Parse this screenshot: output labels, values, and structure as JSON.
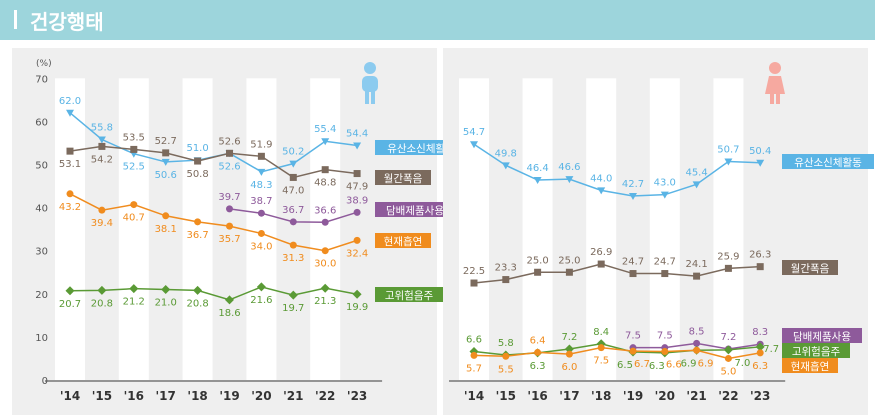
{
  "title": "건강행태",
  "chart_data": [
    {
      "type": "line",
      "panel": "male",
      "ylabel": "(%)",
      "ylim": [
        0,
        70
      ],
      "yticks": [
        0,
        10,
        20,
        30,
        40,
        50,
        60,
        70
      ],
      "categories": [
        "'14",
        "'15",
        "'16",
        "'17",
        "'18",
        "'19",
        "'20",
        "'21",
        "'22",
        "'23"
      ],
      "series": [
        {
          "name": "유산소신체활동",
          "color": "#5ab4e5",
          "marker": "triangle",
          "values": [
            62.0,
            55.8,
            52.5,
            50.6,
            51.0,
            52.6,
            48.3,
            50.2,
            55.4,
            54.4
          ],
          "labelPos": [
            "a",
            "a",
            "b",
            "b",
            "a",
            "b",
            "b",
            "a",
            "a",
            "a"
          ]
        },
        {
          "name": "월간폭음",
          "color": "#7b6a5d",
          "marker": "square",
          "values": [
            53.1,
            54.2,
            53.5,
            52.7,
            50.8,
            52.6,
            51.9,
            47.0,
            48.8,
            47.9
          ],
          "labelPos": [
            "b",
            "b",
            "a",
            "a",
            "b",
            "a",
            "a",
            "b",
            "b",
            "b"
          ]
        },
        {
          "name": "담배제품사용",
          "color": "#8e5a9b",
          "marker": "circle",
          "values": [
            null,
            null,
            null,
            null,
            null,
            39.7,
            38.7,
            36.7,
            36.6,
            38.9
          ],
          "labelPos": [
            "a",
            "a",
            "a",
            "a",
            "a",
            "a",
            "a",
            "a",
            "a",
            "a"
          ]
        },
        {
          "name": "현재흡연",
          "color": "#f08c1e",
          "marker": "circle",
          "values": [
            43.2,
            39.4,
            40.7,
            38.1,
            36.7,
            35.7,
            34.0,
            31.3,
            30.0,
            32.4
          ],
          "labelPos": [
            "b",
            "b",
            "b",
            "b",
            "b",
            "b",
            "b",
            "b",
            "b",
            "b"
          ]
        },
        {
          "name": "고위험음주",
          "color": "#5a9a35",
          "marker": "diamond",
          "values": [
            20.7,
            20.8,
            21.2,
            21.0,
            20.8,
            18.6,
            21.6,
            19.7,
            21.3,
            19.9
          ],
          "labelPos": [
            "b",
            "b",
            "b",
            "b",
            "b",
            "b",
            "b",
            "b",
            "b",
            "b"
          ]
        }
      ]
    },
    {
      "type": "line",
      "panel": "female",
      "ylim": [
        0,
        70
      ],
      "categories": [
        "'14",
        "'15",
        "'16",
        "'17",
        "'18",
        "'19",
        "'20",
        "'21",
        "'22",
        "'23"
      ],
      "series": [
        {
          "name": "유산소신체활동",
          "color": "#5ab4e5",
          "marker": "triangle",
          "values": [
            54.7,
            49.8,
            46.4,
            46.6,
            44.0,
            42.7,
            43.0,
            45.4,
            50.7,
            50.4
          ],
          "labelPos": [
            "a",
            "a",
            "a",
            "a",
            "a",
            "a",
            "a",
            "a",
            "a",
            "a"
          ]
        },
        {
          "name": "월간폭음",
          "color": "#7b6a5d",
          "marker": "square",
          "values": [
            22.5,
            23.3,
            25.0,
            25.0,
            26.9,
            24.7,
            24.7,
            24.1,
            25.9,
            26.3
          ],
          "labelPos": [
            "a",
            "a",
            "a",
            "a",
            "a",
            "a",
            "a",
            "a",
            "a",
            "a"
          ]
        },
        {
          "name": "담배제품사용",
          "color": "#8e5a9b",
          "marker": "circle",
          "values": [
            null,
            null,
            null,
            null,
            null,
            7.5,
            7.5,
            8.5,
            7.2,
            8.3
          ],
          "labelPos": [
            "a",
            "a",
            "a",
            "a",
            "a",
            "a",
            "a",
            "a",
            "a",
            "a"
          ]
        },
        {
          "name": "고위험음주",
          "color": "#5a9a35",
          "marker": "diamond",
          "values": [
            6.6,
            5.8,
            6.3,
            7.2,
            8.4,
            6.5,
            6.3,
            6.9,
            7.0,
            7.7
          ],
          "labelPos": [
            "a",
            "a",
            "b",
            "a",
            "a",
            "bl",
            "bl",
            "bl",
            "r",
            "r"
          ]
        },
        {
          "name": "현재흡연",
          "color": "#f08c1e",
          "marker": "circle",
          "values": [
            5.7,
            5.5,
            6.4,
            6.0,
            7.5,
            6.7,
            6.6,
            6.9,
            5.0,
            6.3
          ],
          "labelPos": [
            "b",
            "b",
            "a",
            "b",
            "b",
            "br",
            "br",
            "br",
            "b",
            "b"
          ]
        }
      ]
    }
  ]
}
